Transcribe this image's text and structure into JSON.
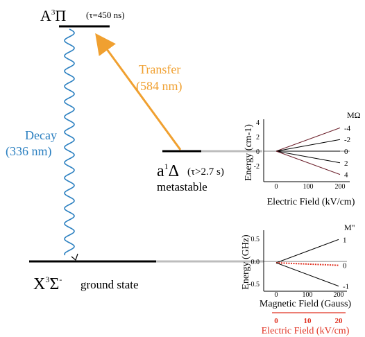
{
  "levels": {
    "upper": {
      "symbol_main": "A",
      "symbol_sup": "3",
      "symbol_term": "Π",
      "lifetime": "(τ=450 ns)"
    },
    "meta": {
      "symbol_main": "a",
      "symbol_sup": "1",
      "symbol_term": "Δ",
      "lifetime": "(τ>2.7 s)",
      "label": "metastable"
    },
    "ground": {
      "symbol_main": "X",
      "symbol_sup": "3",
      "symbol_term": "Σ",
      "symbol_sup2": "-",
      "label": "ground state"
    }
  },
  "transitions": {
    "transfer": {
      "line1": "Transfer",
      "line2": "(584 nm)",
      "color": "#f0a030"
    },
    "decay": {
      "line1": "Decay",
      "line2": "(336 nm)",
      "color": "#2a7fc0"
    }
  },
  "stark_plot": {
    "ylabel": "Energy (cm-1)",
    "xlabel": "Electric Field (kV/cm)",
    "legend_header": "MΩ",
    "legend_values": [
      "-4",
      "-2",
      "0",
      "2",
      "4"
    ],
    "yticks": [
      "4",
      "2",
      "0",
      "-2"
    ],
    "xticks": [
      "0",
      "100",
      "200"
    ]
  },
  "zeeman_plot": {
    "ylabel": "Energy (GHz)",
    "xlabel": "Magnetic Field (Gauss)",
    "legend_header": "M\"",
    "legend_values": [
      "1",
      "0",
      "-1"
    ],
    "yticks": [
      "0.5",
      "0.0",
      "-0.5"
    ],
    "xticks": [
      "0",
      "100",
      "200"
    ],
    "secondary_xlabel": "Electric Field (kV/cm)",
    "secondary_xticks": [
      "0",
      "10",
      "20"
    ],
    "secondary_color": "#e03020"
  },
  "chart_data": [
    {
      "type": "line",
      "xlabel": "Electric Field (kV/cm)",
      "ylabel": "Energy (cm-1)",
      "xlim": [
        0,
        200
      ],
      "ylim": [
        -4,
        4
      ],
      "series": [
        {
          "name": "-4",
          "x": [
            0,
            200
          ],
          "y": [
            0,
            3.2
          ]
        },
        {
          "name": "-2",
          "x": [
            0,
            200
          ],
          "y": [
            0,
            1.6
          ]
        },
        {
          "name": "0",
          "x": [
            0,
            200
          ],
          "y": [
            0,
            0
          ]
        },
        {
          "name": "2",
          "x": [
            0,
            200
          ],
          "y": [
            0,
            -1.6
          ]
        },
        {
          "name": "4",
          "x": [
            0,
            200
          ],
          "y": [
            0,
            -3.2
          ]
        }
      ]
    },
    {
      "type": "line",
      "xlabel": "Magnetic Field (Gauss)",
      "ylabel": "Energy (GHz)",
      "xlim": [
        0,
        200
      ],
      "ylim": [
        -0.6,
        0.6
      ],
      "series": [
        {
          "name": "1",
          "x": [
            0,
            200
          ],
          "y": [
            0,
            0.56
          ]
        },
        {
          "name": "0",
          "x": [
            0,
            200
          ],
          "y": [
            0,
            -0.06
          ]
        },
        {
          "name": "-1",
          "x": [
            0,
            200
          ],
          "y": [
            0,
            -0.56
          ]
        }
      ]
    }
  ]
}
